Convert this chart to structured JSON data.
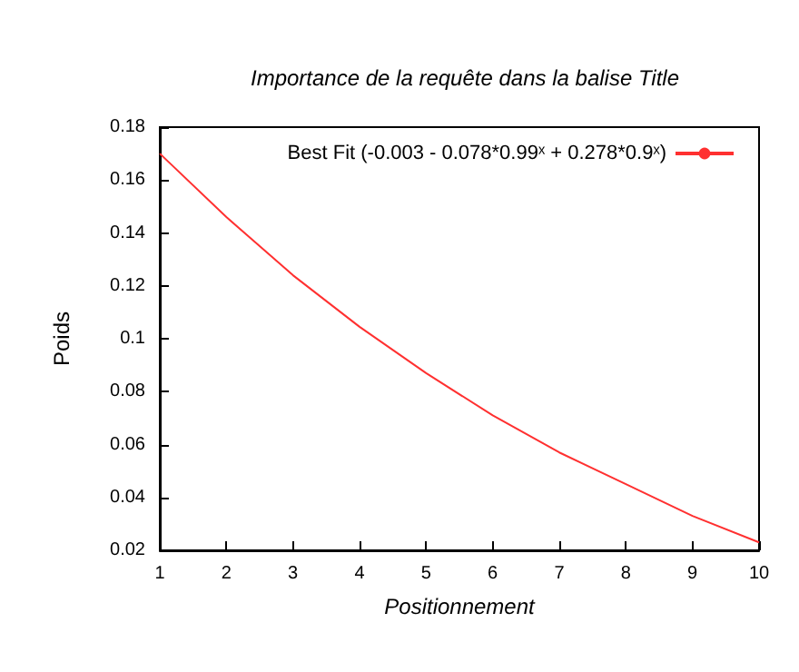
{
  "chart_data": {
    "type": "line",
    "title": "Importance de la requête dans la balise Title",
    "xlabel": "Positionnement",
    "ylabel": "Poids",
    "x": [
      1,
      2,
      3,
      4,
      5,
      6,
      7,
      8,
      9,
      10
    ],
    "series": [
      {
        "name": "Best Fit (-0.003 - 0.078*0.99ˣ + 0.278*0.9ˣ)",
        "color": "#ff3030",
        "values": [
          0.17,
          0.146,
          0.124,
          0.1045,
          0.087,
          0.071,
          0.057,
          0.045,
          0.033,
          0.023
        ]
      }
    ],
    "xlim": [
      1,
      10
    ],
    "xticks": [
      1,
      2,
      3,
      4,
      5,
      6,
      7,
      8,
      9,
      10
    ],
    "ylim": [
      0.02,
      0.18
    ],
    "yticks": [
      0.02,
      0.04,
      0.06,
      0.08,
      0.1,
      0.12,
      0.14,
      0.16,
      0.18
    ],
    "grid": false,
    "legend": "top right",
    "marker": "none",
    "line_style": "solid"
  }
}
